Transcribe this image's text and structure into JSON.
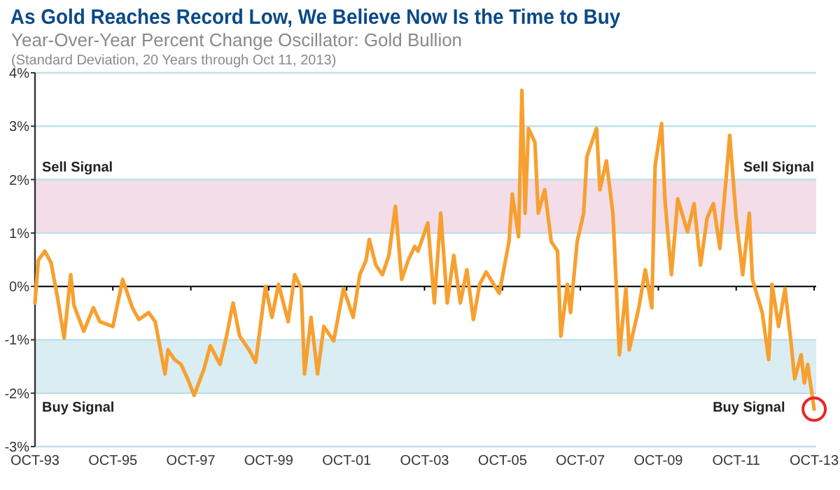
{
  "chart_data": {
    "type": "line",
    "title": "As Gold Reaches Record Low, We Believe Now Is the Time to Buy",
    "subtitle": "Year-Over-Year Percent Change Oscillator: Gold Bullion",
    "annotations": [
      "(Standard Deviation, 20 Years through Oct 11, 2013)",
      {
        "text": "Sell Signal",
        "x": "2013-10",
        "y": 2
      },
      {
        "text": "Buy Signal",
        "x": "2013-01",
        "y": -2
      }
    ],
    "x": [
      "1993-10",
      "1993-11",
      "1994-01",
      "1994-03",
      "1994-05",
      "1994-07",
      "1994-09",
      "1994-10",
      "1995-01",
      "1995-04",
      "1995-06",
      "1995-10",
      "1996-01",
      "1996-04",
      "1996-06",
      "1996-09",
      "1996-11",
      "1997-02",
      "1997-03",
      "1997-05",
      "1997-07",
      "1997-09",
      "1997-11",
      "1998-02",
      "1998-04",
      "1998-07",
      "1998-09",
      "1998-11",
      "1999-01",
      "1999-04",
      "1999-06",
      "1999-09",
      "1999-11",
      "2000-01",
      "2000-04",
      "2000-06",
      "2000-08",
      "2000-09",
      "2000-11",
      "2001-01",
      "2001-03",
      "2001-06",
      "2001-09",
      "2001-12",
      "2002-02",
      "2002-04",
      "2002-05",
      "2002-07",
      "2002-09",
      "2002-11",
      "2003-01",
      "2003-03",
      "2003-05",
      "2003-07",
      "2003-08",
      "2003-11",
      "2004-01",
      "2004-03",
      "2004-05",
      "2004-07",
      "2004-09",
      "2004-11",
      "2005-01",
      "2005-03",
      "2005-05",
      "2005-09",
      "2005-12",
      "2006-01",
      "2006-03",
      "2006-04",
      "2006-05",
      "2006-06",
      "2006-08",
      "2006-09",
      "2006-11",
      "2007-01",
      "2007-03",
      "2007-04",
      "2007-06",
      "2007-07",
      "2007-09",
      "2007-11",
      "2007-12",
      "2008-03",
      "2008-04",
      "2008-06",
      "2008-08",
      "2008-09",
      "2008-10",
      "2008-12",
      "2009-01",
      "2009-04",
      "2009-06",
      "2009-08",
      "2009-09",
      "2009-11",
      "2009-12",
      "2010-02",
      "2010-04",
      "2010-07",
      "2010-09",
      "2010-11",
      "2011-01",
      "2011-03",
      "2011-05",
      "2011-07",
      "2011-08",
      "2011-10",
      "2011-12",
      "2012-02",
      "2012-03",
      "2012-06",
      "2012-08",
      "2012-09",
      "2012-11",
      "2013-01",
      "2013-03",
      "2013-04",
      "2013-06",
      "2013-07",
      "2013-08",
      "2013-10"
    ],
    "series": [
      {
        "color": "#f7a030",
        "values": [
          -0.31,
          0.49,
          0.66,
          0.44,
          -0.22,
          -0.97,
          0.22,
          -0.35,
          -0.84,
          -0.4,
          -0.66,
          -0.75,
          0.13,
          -0.4,
          -0.62,
          -0.49,
          -0.66,
          -1.64,
          -1.19,
          -1.37,
          -1.46,
          -1.73,
          -2.04,
          -1.55,
          -1.11,
          -1.46,
          -0.93,
          -0.31,
          -0.93,
          -1.19,
          -1.42,
          0.0,
          -0.58,
          0.04,
          -0.66,
          0.22,
          -0.04,
          -1.64,
          -0.58,
          -1.64,
          -0.75,
          -1.02,
          -0.04,
          -0.58,
          0.22,
          0.49,
          0.88,
          0.4,
          0.22,
          0.58,
          1.5,
          0.13,
          0.49,
          0.75,
          0.66,
          1.19,
          -0.31,
          1.37,
          -0.31,
          0.58,
          -0.31,
          0.31,
          -0.62,
          0.04,
          0.27,
          -0.13,
          0.84,
          1.73,
          0.93,
          3.67,
          1.37,
          2.96,
          2.7,
          1.37,
          1.81,
          0.84,
          0.66,
          -0.93,
          0.04,
          -0.49,
          0.84,
          1.37,
          2.43,
          2.96,
          1.81,
          2.35,
          1.37,
          0.04,
          -1.28,
          -0.04,
          -1.19,
          -0.4,
          0.31,
          -0.4,
          2.26,
          3.05,
          1.64,
          0.22,
          1.64,
          1.02,
          1.55,
          0.4,
          1.28,
          1.55,
          0.71,
          2.08,
          2.83,
          1.28,
          0.22,
          1.37,
          0.13,
          -0.49,
          -1.37,
          0.04,
          -0.75,
          -0.04,
          -1.11,
          -1.73,
          -1.28,
          -1.81,
          -1.46,
          -2.3
        ]
      }
    ],
    "xlim": [
      "1993-10",
      "2013-10-20"
    ],
    "xticks": [
      {
        "value": "1993-10",
        "label": "OCT-93"
      },
      {
        "value": "1995-10",
        "label": "OCT-95"
      },
      {
        "value": "1997-10",
        "label": "OCT-97"
      },
      {
        "value": "1999-10",
        "label": "OCT-99"
      },
      {
        "value": "2001-10",
        "label": "OCT-01"
      },
      {
        "value": "2003-10",
        "label": "OCT-03"
      },
      {
        "value": "2005-10",
        "label": "OCT-05"
      },
      {
        "value": "2007-10",
        "label": "OCT-07"
      },
      {
        "value": "2009-10",
        "label": "OCT-09"
      },
      {
        "value": "2011-10",
        "label": "OCT-11"
      },
      {
        "value": "2013-10",
        "label": "OCT-13"
      }
    ],
    "ylim": [
      -3,
      4
    ],
    "yticks": [
      {
        "value": -3,
        "label": "-3%"
      },
      {
        "value": -2,
        "label": "-2%"
      },
      {
        "value": -1,
        "label": "-1%"
      },
      {
        "value": 0,
        "label": "0%"
      },
      {
        "value": 1,
        "label": "1%"
      },
      {
        "value": 2,
        "label": "2%"
      },
      {
        "value": 3,
        "label": "3%"
      },
      {
        "value": 4,
        "label": "4%"
      }
    ],
    "bands": [
      {
        "axis": "y",
        "from": 1,
        "to": 2,
        "label": "Sell Signal",
        "color": "#f2dde9"
      },
      {
        "axis": "y",
        "from": -2,
        "to": -1,
        "label": "Buy Signal",
        "color": "#d9edf3"
      }
    ],
    "ref_lines": [
      {
        "axis": "y",
        "value": 0,
        "color": "#000000"
      }
    ],
    "grid": "y",
    "marker": "none",
    "line_style": "solid"
  }
}
